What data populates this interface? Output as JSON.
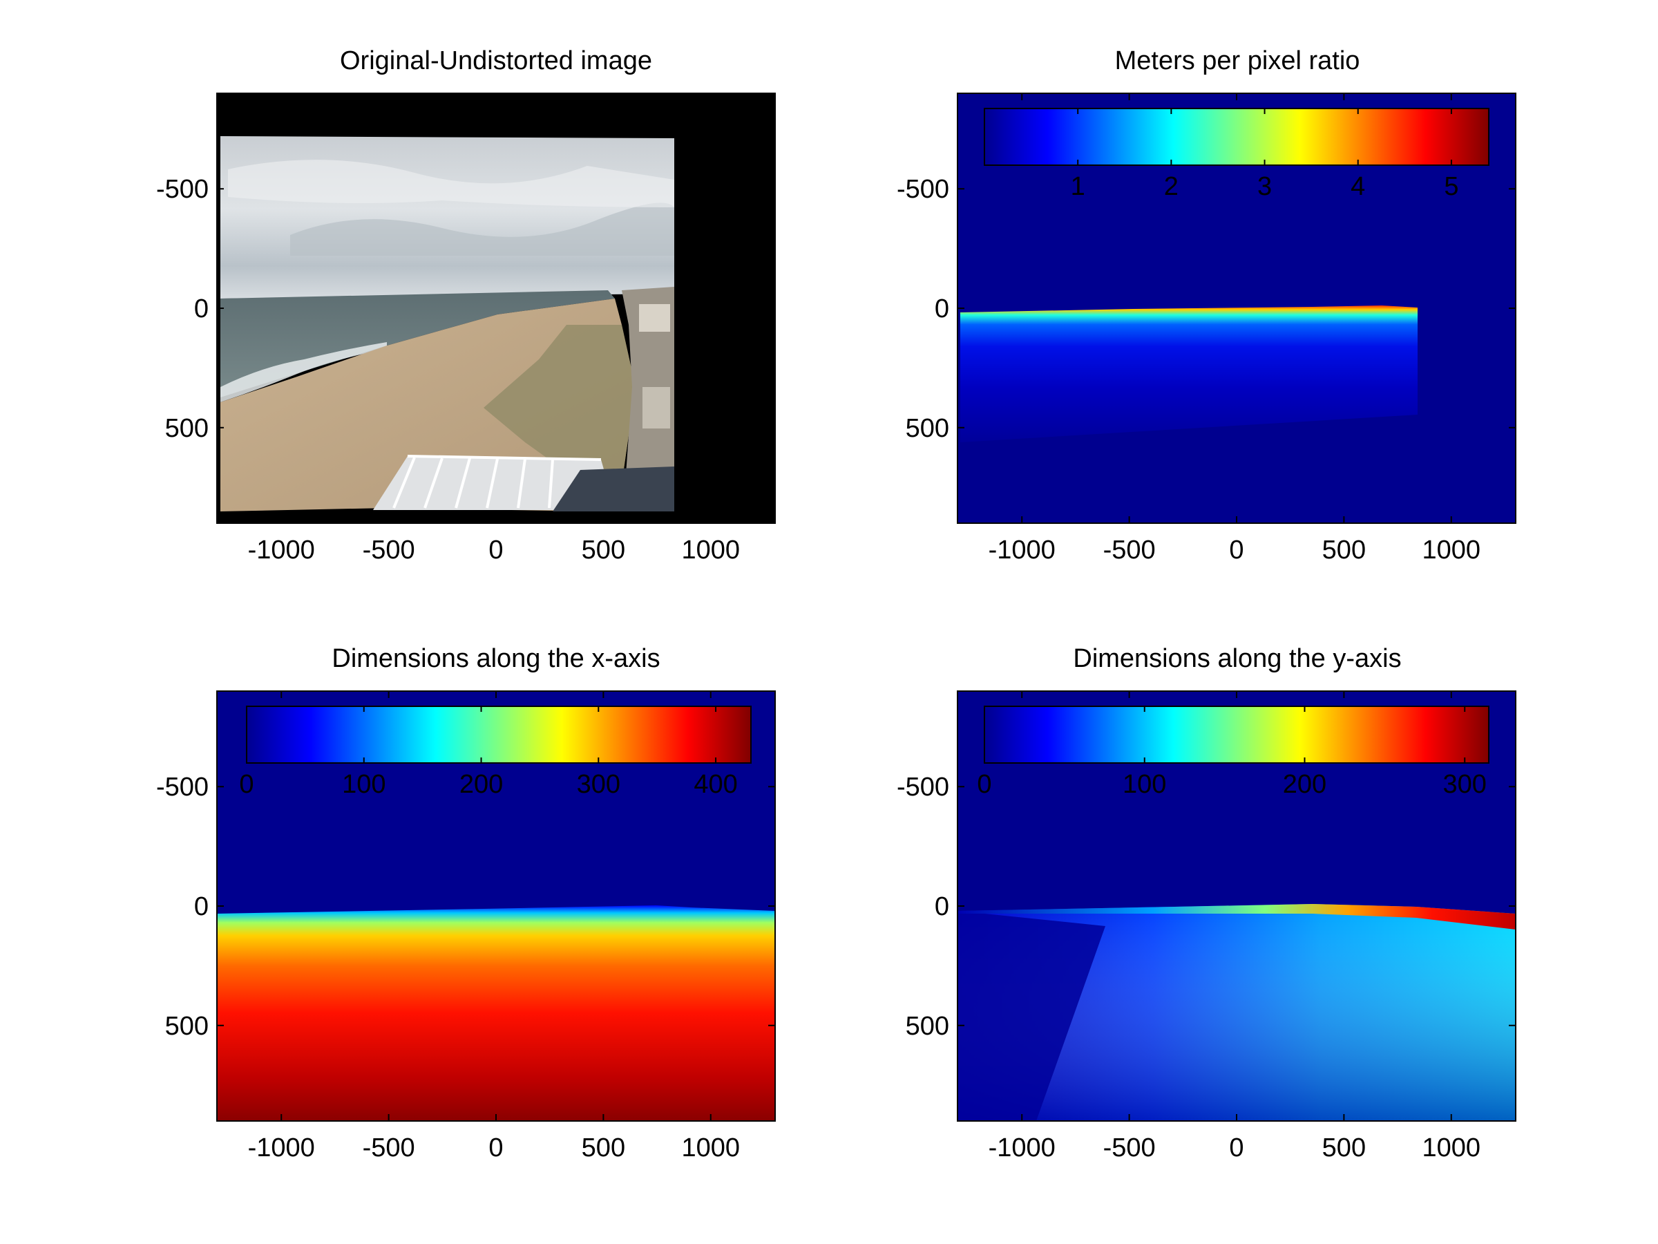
{
  "figure": {
    "colormap": "jet"
  },
  "chart_data": [
    {
      "type": "heatmap",
      "title": "Original-Undistorted image",
      "xticks": [
        -1000,
        -500,
        0,
        500,
        1000
      ],
      "yticks": [
        -500,
        0,
        500
      ],
      "xlim": [
        -1300,
        1300
      ],
      "ylim": [
        -900,
        900
      ],
      "y_direction": "reversed",
      "content": "photograph of beach, sea and cloudy sky on black background",
      "image_extent": {
        "x": [
          -1290,
          830
        ],
        "y": [
          -720,
          870
        ]
      },
      "colorbar": null
    },
    {
      "type": "heatmap",
      "title": "Meters per pixel ratio",
      "xticks": [
        -1000,
        -500,
        0,
        500,
        1000
      ],
      "yticks": [
        -500,
        0,
        500
      ],
      "xlim": [
        -1300,
        1300
      ],
      "ylim": [
        -900,
        900
      ],
      "y_direction": "reversed",
      "background_value": 0,
      "colorbar": {
        "location": "top-inside",
        "ticks": [
          1,
          2,
          3,
          4,
          5
        ],
        "range": [
          0,
          5.4
        ]
      }
    },
    {
      "type": "heatmap",
      "title": "Dimensions along the x-axis",
      "xticks": [
        -1000,
        -500,
        0,
        500,
        1000
      ],
      "yticks": [
        -500,
        0,
        500
      ],
      "xlim": [
        -1300,
        1300
      ],
      "ylim": [
        -900,
        900
      ],
      "y_direction": "reversed",
      "background_value": 0,
      "colorbar": {
        "location": "top-inside",
        "ticks": [
          0,
          100,
          200,
          300,
          400
        ],
        "range": [
          0,
          430
        ]
      }
    },
    {
      "type": "heatmap",
      "title": "Dimensions along the y-axis",
      "xticks": [
        -1000,
        -500,
        0,
        500,
        1000
      ],
      "yticks": [
        -500,
        0,
        500
      ],
      "xlim": [
        -1300,
        1300
      ],
      "ylim": [
        -900,
        900
      ],
      "y_direction": "reversed",
      "background_value": 0,
      "colorbar": {
        "location": "top-inside",
        "ticks": [
          0,
          100,
          200,
          300
        ],
        "range": [
          0,
          315
        ]
      }
    }
  ]
}
